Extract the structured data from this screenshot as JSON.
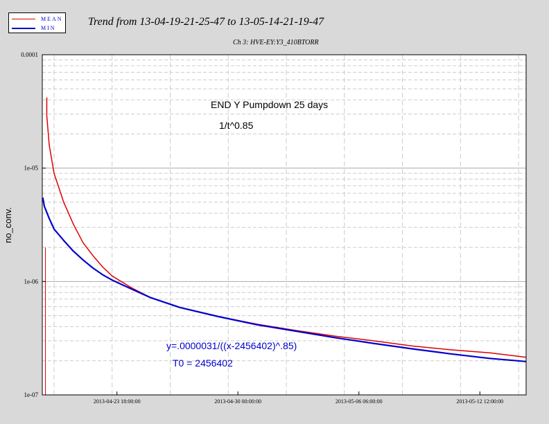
{
  "legend": {
    "items": [
      {
        "label": "MEAN",
        "color": "#dd0000"
      },
      {
        "label": "MIN",
        "color": "#0000cc"
      }
    ]
  },
  "title": "Trend from 13-04-19-21-25-47 to 13-05-14-21-19-47",
  "subtitle": "Ch 3: HVE-EY:Y3_410BTORR",
  "chart_data": {
    "type": "line",
    "title": "Trend from 13-04-19-21-25-47 to 13-05-14-21-19-47",
    "subtitle": "Ch 3: HVE-EY:Y3_410BTORR",
    "xlabel": "",
    "ylabel": "no_conv.",
    "yscale": "log",
    "ylim": [
      1e-07,
      0.0001
    ],
    "xlim": [
      "2013-04-19 21:25:47",
      "2013-05-14 21:19:47"
    ],
    "x_ticks": [
      "2013-04-23 18:00:00",
      "2013-04-30 00:00:00",
      "2013-05-06 06:00:00",
      "2013-05-12 12:00:00"
    ],
    "y_ticks": [
      "0.0001",
      "1e-05",
      "1e-06",
      "1e-07"
    ],
    "grid": true,
    "legend_position": "top-left",
    "series": [
      {
        "name": "MEAN",
        "color": "#dd0000",
        "x": [
          "2013-04-20 03:00",
          "2013-04-20 06:00",
          "2013-04-20 12:00",
          "2013-04-21 00:00",
          "2013-04-21 12:00",
          "2013-04-22 00:00",
          "2013-04-22 12:00",
          "2013-04-23 00:00",
          "2013-04-23 12:00",
          "2013-04-24 12:00",
          "2013-04-25 12:00",
          "2013-04-27 00:00",
          "2013-04-29 00:00",
          "2013-05-01 00:00",
          "2013-05-03 00:00",
          "2013-05-05 00:00",
          "2013-05-07 00:00",
          "2013-05-09 00:00",
          "2013-05-11 00:00",
          "2013-05-13 00:00",
          "2013-05-14 21:00"
        ],
        "values": [
          2.9e-05,
          1.6e-05,
          9e-06,
          5e-06,
          3.2e-06,
          2.2e-06,
          1.7e-06,
          1.35e-06,
          1.12e-06,
          8.8e-07,
          7.2e-07,
          5.9e-07,
          4.9e-07,
          4.2e-07,
          3.7e-07,
          3.3e-07,
          3e-07,
          2.7e-07,
          2.5e-07,
          2.35e-07,
          2.15e-07
        ]
      },
      {
        "name": "MIN",
        "color": "#0000cc",
        "x": [
          "2013-04-19 22:00",
          "2013-04-20 00:00",
          "2013-04-20 06:00",
          "2013-04-20 12:00",
          "2013-04-21 00:00",
          "2013-04-21 12:00",
          "2013-04-22 00:00",
          "2013-04-22 12:00",
          "2013-04-23 00:00",
          "2013-04-23 12:00",
          "2013-04-24 12:00",
          "2013-04-25 12:00",
          "2013-04-27 00:00",
          "2013-04-29 00:00",
          "2013-05-01 00:00",
          "2013-05-03 00:00",
          "2013-05-05 00:00",
          "2013-05-07 00:00",
          "2013-05-09 00:00",
          "2013-05-11 00:00",
          "2013-05-13 00:00",
          "2013-05-14 21:00"
        ],
        "values": [
          5.5e-06,
          4.6e-06,
          3.6e-06,
          2.9e-06,
          2.3e-06,
          1.85e-06,
          1.55e-06,
          1.32e-06,
          1.15e-06,
          1.03e-06,
          8.6e-07,
          7.2e-07,
          5.9e-07,
          4.9e-07,
          4.15e-07,
          3.65e-07,
          3.2e-07,
          2.85e-07,
          2.55e-07,
          2.3e-07,
          2.1e-07,
          1.97e-07
        ]
      }
    ],
    "annotations": [
      {
        "text": "END Y Pumpdown 25 days",
        "color": "#000000"
      },
      {
        "text": "1/t^0.85",
        "color": "#000000"
      },
      {
        "text": "y=.0000031/((x-2456402)^.85)",
        "color": "#0000cc"
      },
      {
        "text": "T0 = 2456402",
        "color": "#0000cc"
      }
    ]
  }
}
